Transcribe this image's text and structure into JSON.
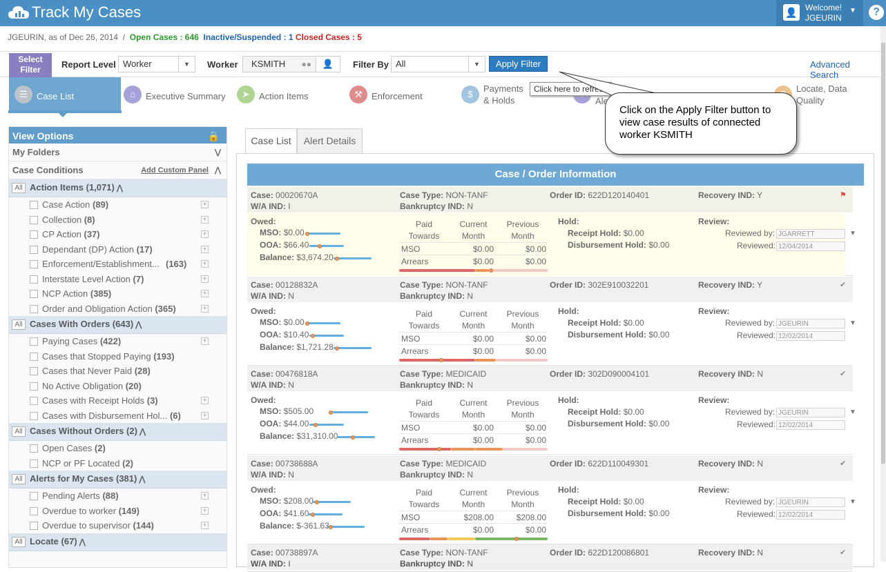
{
  "header": {
    "title": "Track My Cases",
    "welcome": "Welcome!",
    "username": "JGEURIN",
    "help": "?"
  },
  "status": {
    "user_asof": "JGEURIN, as of Dec 26, 2014",
    "sep": "/",
    "open_label": "Open Cases : 646",
    "inactive_label": "Inactive/Suspended : 1",
    "closed_label": "Closed Cases : 5"
  },
  "filter": {
    "select_filter": "Select Filter",
    "report_level_label": "Report Level",
    "report_level_value": "Worker",
    "worker_label": "Worker",
    "worker_value": "KSMITH",
    "filter_by_label": "Filter By",
    "filter_by_value": "All",
    "apply_label": "Apply Filter",
    "advanced_search": "Advanced Search",
    "tooltip": "Click here to refresh"
  },
  "tabs": [
    {
      "label": "Case List",
      "color": "#a9b3bd"
    },
    {
      "label": "Executive Summary",
      "color": "#8e8bd2"
    },
    {
      "label": "Action Items",
      "color": "#9ccb78"
    },
    {
      "label": "Enforcement",
      "color": "#d96d6d"
    },
    {
      "label": "Payments & Holds",
      "color": "#8bb5d6"
    },
    {
      "label": "Ale",
      "color": "#8e8bd2"
    },
    {
      "label": "Locate, Data Quality",
      "color": "#e8b372"
    }
  ],
  "callout": "Click on the Apply Filter button to view case results of connected worker KSMITH",
  "sidebar": {
    "title": "View Options",
    "my_folders": "My Folders",
    "case_conditions": "Case Conditions",
    "add_custom_panel": "Add Custom Panel",
    "all": "All",
    "groups": [
      {
        "title": "Action Items (1,071)",
        "items": [
          {
            "label": "Case Action",
            "count": "(89)"
          },
          {
            "label": "Collection",
            "count": "(8)"
          },
          {
            "label": "CP Action",
            "count": "(37)"
          },
          {
            "label": "Dependant (DP) Action",
            "count": "(17)"
          },
          {
            "label": "Enforcement/Establishment...",
            "count": "(163)"
          },
          {
            "label": "Interstate Level Action",
            "count": "(7)"
          },
          {
            "label": "NCP Action",
            "count": "(385)"
          },
          {
            "label": "Order and Obligation Action",
            "count": "(365)"
          }
        ]
      },
      {
        "title": "Cases With Orders (643)",
        "items": [
          {
            "label": "Paying Cases",
            "count": "(422)"
          },
          {
            "label": "Cases that Stopped Paying",
            "count": "(193)"
          },
          {
            "label": "Cases that Never Paid",
            "count": "(28)"
          },
          {
            "label": "No Active Obligation",
            "count": "(20)"
          },
          {
            "label": "Cases with Receipt Holds",
            "count": "(3)"
          },
          {
            "label": "Cases with Disbursement Hol...",
            "count": "(6)"
          }
        ]
      },
      {
        "title": "Cases Without Orders (2)",
        "items": [
          {
            "label": "Open Cases",
            "count": "(2)"
          },
          {
            "label": "NCP or PF Located",
            "count": "(2)"
          }
        ]
      },
      {
        "title": "Alerts for My Cases (381)",
        "items": [
          {
            "label": "Pending Alerts",
            "count": "(88)"
          },
          {
            "label": "Overdue to worker",
            "count": "(149)"
          },
          {
            "label": "Overdue to supervisor",
            "count": "(144)"
          }
        ]
      },
      {
        "title": "Locate (67)",
        "items": []
      }
    ]
  },
  "content_tabs": {
    "case_list": "Case List",
    "alert_details": "Alert Details"
  },
  "labels": {
    "section_title": "Case / Order Information",
    "case": "Case:",
    "wa_ind": "W/A IND:",
    "case_type": "Case Type:",
    "bankruptcy_ind": "Bankruptcy IND:",
    "order_id": "Order ID:",
    "recovery_ind": "Recovery IND:",
    "owed": "Owed:",
    "mso": "MSO:",
    "ooa": "OOA:",
    "balance": "Balance:",
    "paid_towards": "Paid Towards",
    "current_month": "Current Month",
    "previous_month": "Previous Month",
    "mso_row": "MSO",
    "arrears_row": "Arrears",
    "hold": "Hold:",
    "receipt_hold": "Receipt Hold:",
    "disbursement_hold": "Disbursement Hold:",
    "review": "Review:",
    "reviewed_by": "Reviewed by:",
    "reviewed": "Reviewed:"
  },
  "cases": [
    {
      "case": "00020670A",
      "wa": "I",
      "type": "NON-TANF",
      "bankruptcy": "N",
      "order_id": "622D120140401",
      "recovery": "Y",
      "indicator": "flag",
      "mso": "$0.00",
      "ooa": "$66.40",
      "balance": "$3,674.20",
      "mso_cur": "$0.00",
      "mso_prev": "$0.00",
      "arr_cur": "$0.00",
      "arr_prev": "$0.00",
      "receipt_hold": "$0.00",
      "disb_hold": "$0.00",
      "reviewed_by": "JGARRETT",
      "reviewed": "12/04/2014"
    },
    {
      "case": "00128832A",
      "wa": "N",
      "type": "NON-TANF",
      "bankruptcy": "N",
      "order_id": "302E910032201",
      "recovery": "Y",
      "indicator": "check",
      "mso": "$0.00",
      "ooa": "$10.40",
      "balance": "$1,721.28",
      "mso_cur": "$0.00",
      "mso_prev": "$0.00",
      "arr_cur": "$0.00",
      "arr_prev": "$0.00",
      "receipt_hold": "$0.00",
      "disb_hold": "$0.00",
      "reviewed_by": "JGEURIN",
      "reviewed": "12/02/2014"
    },
    {
      "case": "00476818A",
      "wa": "N",
      "type": "MEDICAID",
      "bankruptcy": "N",
      "order_id": "302D090004101",
      "recovery": "N",
      "indicator": "check",
      "mso": "$505.00",
      "ooa": "$44.00",
      "balance": "$31,310.00",
      "mso_cur": "$0.00",
      "mso_prev": "$0.00",
      "arr_cur": "$0.00",
      "arr_prev": "$0.00",
      "receipt_hold": "$0.00",
      "disb_hold": "$0.00",
      "reviewed_by": "JGEURIN",
      "reviewed": "12/02/2014"
    },
    {
      "case": "00738688A",
      "wa": "N",
      "type": "MEDICAID",
      "bankruptcy": "N",
      "order_id": "622D110049301",
      "recovery": "N",
      "indicator": "check",
      "mso": "$208.00",
      "ooa": "$41.60",
      "balance": "$-361.63",
      "mso_cur": "$208.00",
      "mso_prev": "$208.00",
      "arr_cur": "$0.00",
      "arr_prev": "$0.00",
      "receipt_hold": "$0.00",
      "disb_hold": "$0.00",
      "reviewed_by": "JGEURIN",
      "reviewed": "12/02/2014"
    },
    {
      "case": "00738897A",
      "wa": "I",
      "type": "NON-TANF",
      "bankruptcy": "N",
      "order_id": "622D120086801",
      "recovery": "N",
      "indicator": "check"
    }
  ]
}
